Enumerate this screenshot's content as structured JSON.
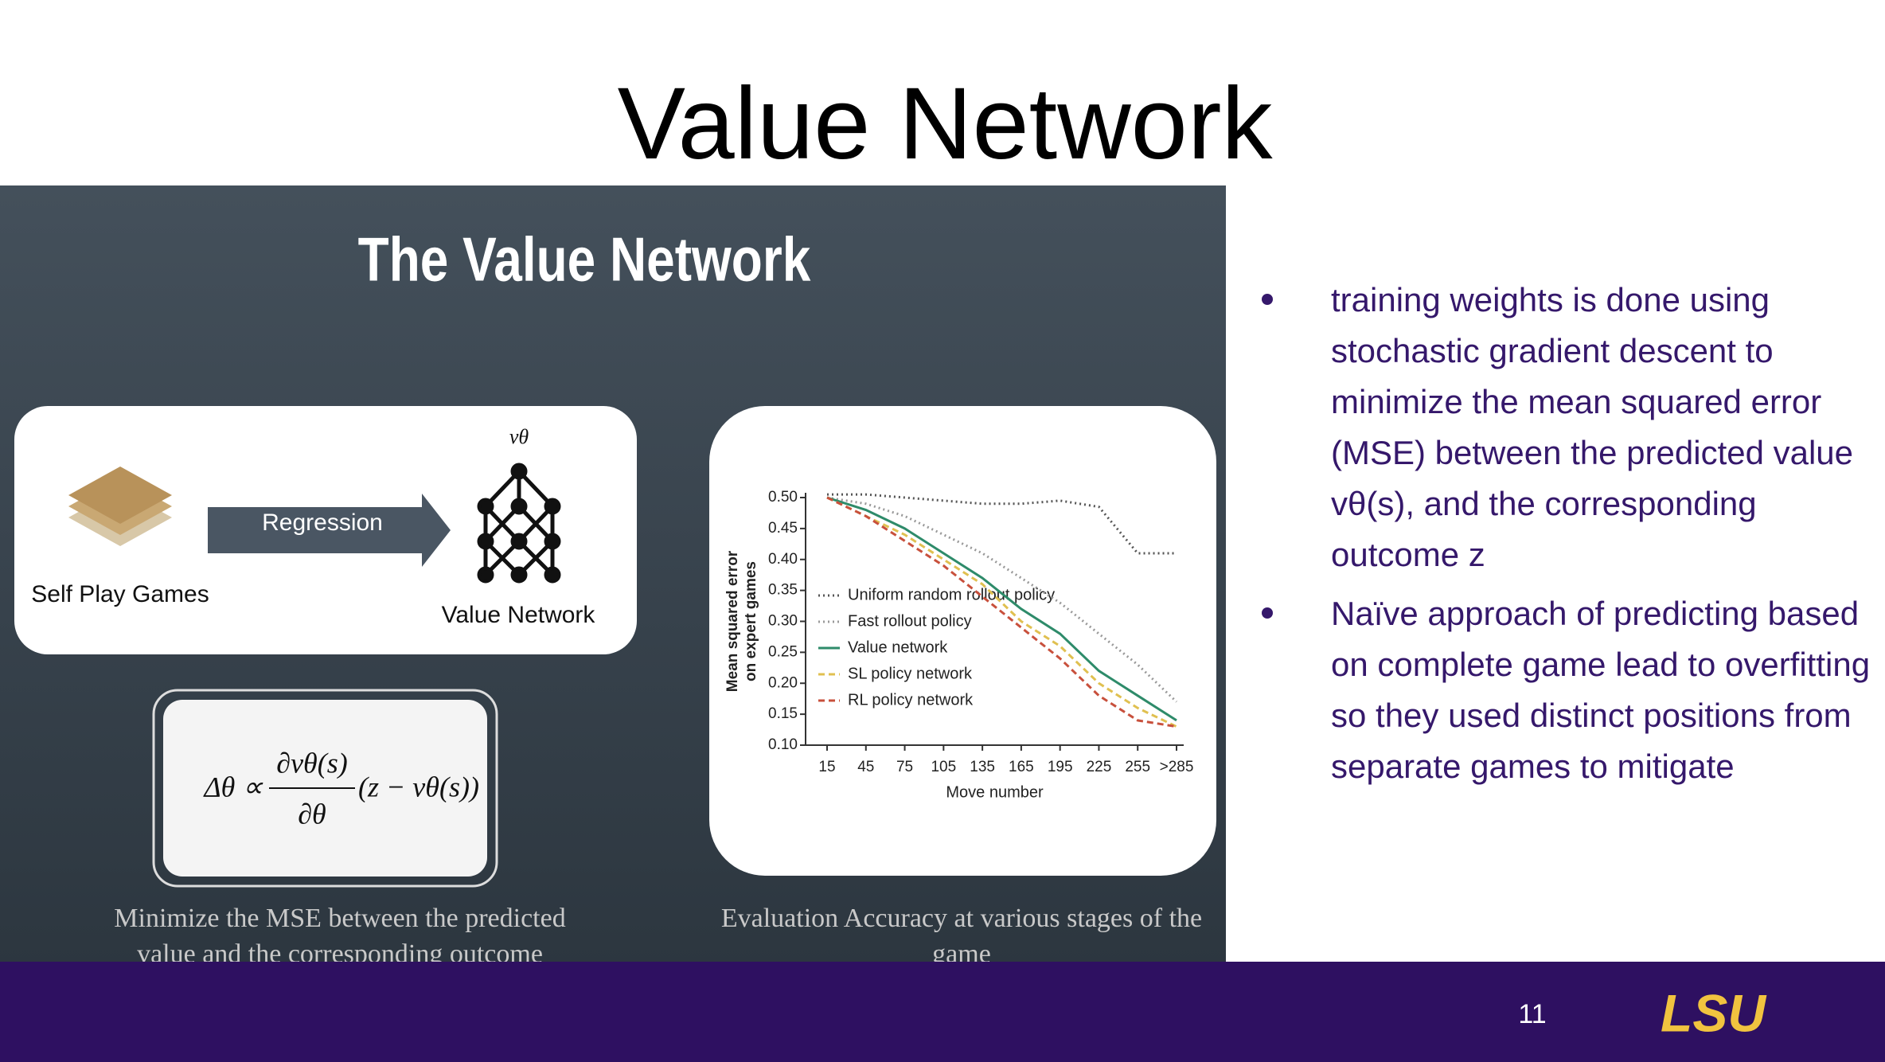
{
  "title": "Value Network",
  "figure": {
    "heading": "The Value Network",
    "diagram": {
      "arrow_label": "Regression",
      "input_label": "Self Play Games",
      "symbol": "vθ",
      "output_label": "Value Network"
    },
    "formula": {
      "lhs": "Δθ ∝",
      "numerator": "∂vθ(s)",
      "denominator": "∂θ",
      "rhs": "(z − vθ(s))"
    },
    "left_caption": [
      "Minimize the MSE between the predicted",
      "value and the corresponding outcome"
    ],
    "right_caption": [
      "Evaluation Accuracy at various stages of the",
      "game"
    ],
    "plot": {
      "type": "line",
      "y_label": [
        "Mean squared error",
        "on expert games"
      ],
      "x_label": "Move number",
      "categories": [
        "15",
        "45",
        "75",
        "105",
        "135",
        "165",
        "195",
        "225",
        "255",
        ">285"
      ],
      "ylim": [
        0.1,
        0.5
      ],
      "yticks": [
        {
          "value": 0.1,
          "label": "0.10"
        },
        {
          "value": 0.15,
          "label": "0.15"
        },
        {
          "value": 0.2,
          "label": "0.20"
        },
        {
          "value": 0.25,
          "label": "0.25"
        },
        {
          "value": 0.3,
          "label": "0.30"
        },
        {
          "value": 0.35,
          "label": "0.35"
        },
        {
          "value": 0.4,
          "label": "0.40"
        },
        {
          "value": 0.45,
          "label": "0.45"
        },
        {
          "value": 0.5,
          "label": "0.50"
        }
      ],
      "series": [
        {
          "name": "Uniform random rollout policy",
          "color": "#555555",
          "dash": "dotted",
          "values": [
            0.505,
            0.505,
            0.5,
            0.495,
            0.49,
            0.49,
            0.495,
            0.485,
            0.41,
            0.41
          ]
        },
        {
          "name": "Fast rollout policy",
          "color": "#999999",
          "dash": "dotted",
          "values": [
            0.5,
            0.49,
            0.47,
            0.44,
            0.41,
            0.37,
            0.33,
            0.28,
            0.23,
            0.17
          ]
        },
        {
          "name": "Value network",
          "color": "#2e8b6a",
          "dash": "solid",
          "values": [
            0.5,
            0.48,
            0.45,
            0.41,
            0.37,
            0.32,
            0.28,
            0.22,
            0.18,
            0.14
          ]
        },
        {
          "name": "SL policy network",
          "color": "#e0c050",
          "dash": "dashed",
          "values": [
            0.5,
            0.47,
            0.44,
            0.4,
            0.36,
            0.3,
            0.26,
            0.2,
            0.16,
            0.13
          ]
        },
        {
          "name": "RL policy network",
          "color": "#c8503c",
          "dash": "dashed",
          "values": [
            0.5,
            0.47,
            0.43,
            0.39,
            0.34,
            0.29,
            0.24,
            0.18,
            0.14,
            0.13
          ]
        }
      ]
    }
  },
  "bullets": [
    "training weights is done using stochastic gradient descent to minimize the mean squared error (MSE) between the predicted value vθ(s), and the corresponding outcome z",
    "Naïve approach of predicting based on complete game lead to overfitting so they used distinct positions from separate games to mitigate"
  ],
  "footer": {
    "page_number": "11",
    "logo": "LSU"
  }
}
